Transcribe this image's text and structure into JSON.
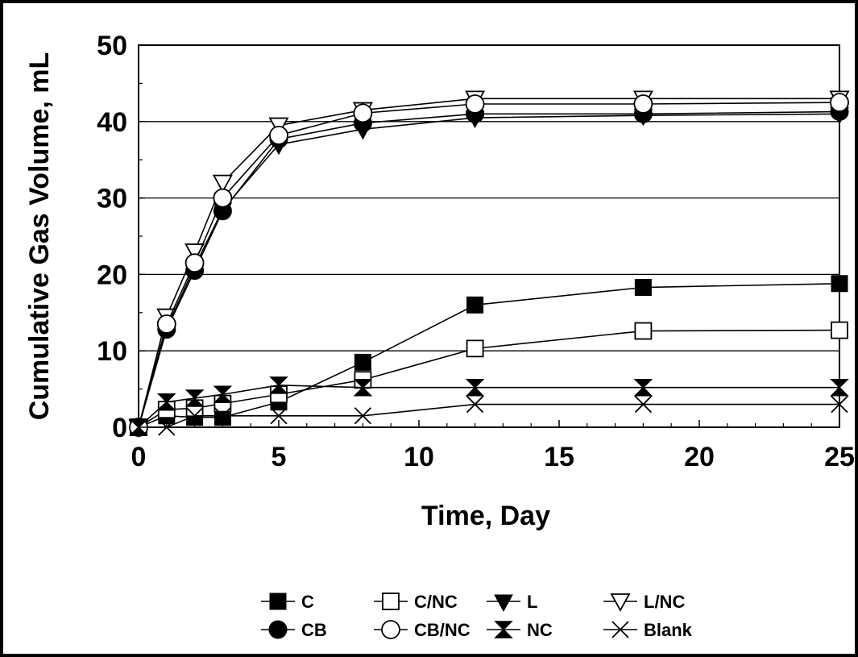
{
  "chart_data": {
    "type": "line",
    "title": "",
    "xlabel": "Time, Day",
    "ylabel": "Cumulative Gas Volume, mL",
    "xlim": [
      0,
      25
    ],
    "ylim": [
      0,
      50
    ],
    "x_ticks": [
      "0",
      "5",
      "10",
      "15",
      "20",
      "25"
    ],
    "y_ticks": [
      "0",
      "10",
      "20",
      "30",
      "40",
      "50"
    ],
    "grid": "horizontal",
    "legend_position": "bottom",
    "series": [
      {
        "name": "C",
        "marker": "square-filled",
        "points": [
          [
            0,
            0
          ],
          [
            1,
            1.5
          ],
          [
            2,
            1.3
          ],
          [
            3,
            1.3
          ],
          [
            5,
            3.3
          ],
          [
            8,
            8.5
          ],
          [
            12,
            16
          ],
          [
            18,
            18.3
          ],
          [
            25,
            18.8
          ]
        ]
      },
      {
        "name": "C/NC",
        "marker": "square-open",
        "points": [
          [
            0,
            0
          ],
          [
            1,
            2.3
          ],
          [
            2,
            2.5
          ],
          [
            3,
            3.1
          ],
          [
            5,
            4.3
          ],
          [
            8,
            6.2
          ],
          [
            12,
            10.3
          ],
          [
            18,
            12.6
          ],
          [
            25,
            12.7
          ]
        ]
      },
      {
        "name": "L",
        "marker": "triangle-down-filled",
        "points": [
          [
            0,
            0
          ],
          [
            1,
            13
          ],
          [
            2,
            21
          ],
          [
            3,
            28.5
          ],
          [
            5,
            37
          ],
          [
            8,
            39
          ],
          [
            12,
            40.5
          ],
          [
            18,
            40.8
          ],
          [
            25,
            41
          ]
        ]
      },
      {
        "name": "L/NC",
        "marker": "triangle-down-open",
        "points": [
          [
            0,
            0
          ],
          [
            1,
            14.5
          ],
          [
            2,
            23
          ],
          [
            3,
            32
          ],
          [
            5,
            39.5
          ],
          [
            8,
            41.5
          ],
          [
            12,
            43
          ],
          [
            18,
            43
          ],
          [
            25,
            43
          ]
        ]
      },
      {
        "name": "CB",
        "marker": "circle-filled",
        "points": [
          [
            0,
            0
          ],
          [
            1,
            12.8
          ],
          [
            2,
            20.5
          ],
          [
            3,
            28.3
          ],
          [
            5,
            37.7
          ],
          [
            8,
            39.8
          ],
          [
            12,
            41
          ],
          [
            18,
            41
          ],
          [
            25,
            41.3
          ]
        ]
      },
      {
        "name": "CB/NC",
        "marker": "circle-open",
        "points": [
          [
            0,
            0
          ],
          [
            1,
            13.5
          ],
          [
            2,
            21.5
          ],
          [
            3,
            30
          ],
          [
            5,
            38.2
          ],
          [
            8,
            41.1
          ],
          [
            12,
            42.3
          ],
          [
            18,
            42.3
          ],
          [
            25,
            42.5
          ]
        ]
      },
      {
        "name": "NC",
        "marker": "hourglass-filled",
        "points": [
          [
            0,
            0
          ],
          [
            1,
            3.3
          ],
          [
            2,
            3.8
          ],
          [
            3,
            4.3
          ],
          [
            5,
            5.5
          ],
          [
            8,
            5.2
          ],
          [
            12,
            5.2
          ],
          [
            18,
            5.2
          ],
          [
            25,
            5.2
          ]
        ]
      },
      {
        "name": "Blank",
        "marker": "x",
        "points": [
          [
            0,
            0
          ],
          [
            1,
            0
          ],
          [
            2,
            1.5
          ],
          [
            3,
            1.5
          ],
          [
            5,
            1.5
          ],
          [
            8,
            1.5
          ],
          [
            12,
            3
          ],
          [
            18,
            3
          ],
          [
            25,
            3
          ]
        ]
      }
    ]
  }
}
